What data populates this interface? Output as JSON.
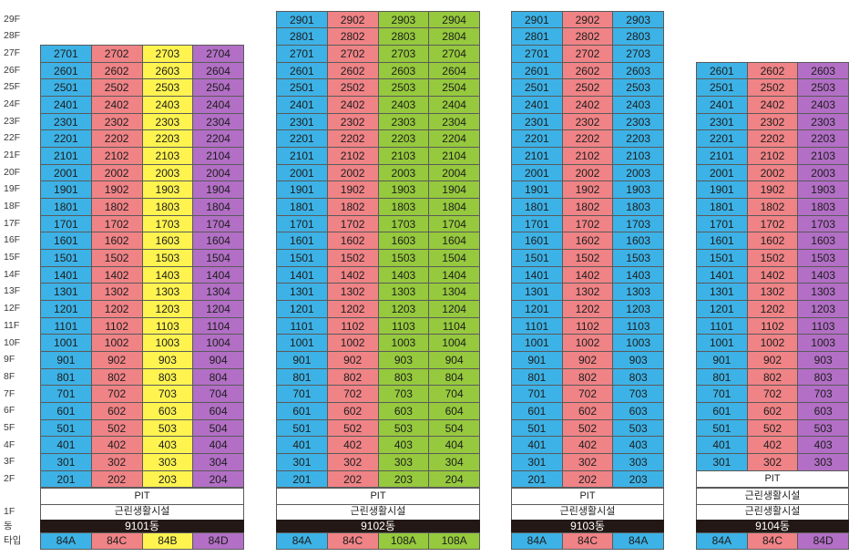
{
  "floor_axis": {
    "floors": [
      "29F",
      "28F",
      "27F",
      "26F",
      "25F",
      "24F",
      "23F",
      "22F",
      "21F",
      "20F",
      "19F",
      "18F",
      "17F",
      "16F",
      "15F",
      "14F",
      "13F",
      "12F",
      "11F",
      "10F",
      "9F",
      "8F",
      "7F",
      "6F",
      "5F",
      "4F",
      "3F",
      "2F"
    ],
    "ground_floor": "1F",
    "building_label": "동",
    "type_label": "타입"
  },
  "colors": {
    "blue": "#3db2e6",
    "pink": "#ef8386",
    "yellow": "#fff350",
    "purple": "#b26fc5",
    "green": "#96c93d",
    "building_bar": "#231815",
    "podium": "#ffffff"
  },
  "buildings": [
    {
      "name": "9101동",
      "lines": [
        {
          "type": "84A",
          "color": "blue"
        },
        {
          "type": "84C",
          "color": "pink"
        },
        {
          "type": "84B",
          "color": "yellow"
        },
        {
          "type": "84D",
          "color": "purple"
        }
      ],
      "units": [
        [
          "2701",
          "2702",
          "2703",
          "2704"
        ],
        [
          "2601",
          "2602",
          "2603",
          "2604"
        ],
        [
          "2501",
          "2502",
          "2503",
          "2504"
        ],
        [
          "2401",
          "2402",
          "2403",
          "2404"
        ],
        [
          "2301",
          "2302",
          "2303",
          "2304"
        ],
        [
          "2201",
          "2202",
          "2203",
          "2204"
        ],
        [
          "2101",
          "2102",
          "2103",
          "2104"
        ],
        [
          "2001",
          "2002",
          "2003",
          "2004"
        ],
        [
          "1901",
          "1902",
          "1903",
          "1904"
        ],
        [
          "1801",
          "1802",
          "1803",
          "1804"
        ],
        [
          "1701",
          "1702",
          "1703",
          "1704"
        ],
        [
          "1601",
          "1602",
          "1603",
          "1604"
        ],
        [
          "1501",
          "1502",
          "1503",
          "1504"
        ],
        [
          "1401",
          "1402",
          "1403",
          "1404"
        ],
        [
          "1301",
          "1302",
          "1303",
          "1304"
        ],
        [
          "1201",
          "1202",
          "1203",
          "1204"
        ],
        [
          "1101",
          "1102",
          "1103",
          "1104"
        ],
        [
          "1001",
          "1002",
          "1003",
          "1004"
        ],
        [
          "901",
          "902",
          "903",
          "904"
        ],
        [
          "801",
          "802",
          "803",
          "804"
        ],
        [
          "701",
          "702",
          "703",
          "704"
        ],
        [
          "601",
          "602",
          "603",
          "604"
        ],
        [
          "501",
          "502",
          "503",
          "504"
        ],
        [
          "401",
          "402",
          "403",
          "404"
        ],
        [
          "301",
          "302",
          "303",
          "304"
        ],
        [
          "201",
          "202",
          "203",
          "204"
        ]
      ],
      "podium": [
        "PIT",
        "근린생활시설"
      ]
    },
    {
      "name": "9102동",
      "lines": [
        {
          "type": "84A",
          "color": "blue"
        },
        {
          "type": "84C",
          "color": "pink"
        },
        {
          "type": "108A",
          "color": "green"
        },
        {
          "type": "108A",
          "color": "green"
        }
      ],
      "units": [
        [
          "2901",
          "2902",
          "2903",
          "2904"
        ],
        [
          "2801",
          "2802",
          "2803",
          "2804"
        ],
        [
          "2701",
          "2702",
          "2703",
          "2704"
        ],
        [
          "2601",
          "2602",
          "2603",
          "2604"
        ],
        [
          "2501",
          "2502",
          "2503",
          "2504"
        ],
        [
          "2401",
          "2402",
          "2403",
          "2404"
        ],
        [
          "2301",
          "2302",
          "2303",
          "2304"
        ],
        [
          "2201",
          "2202",
          "2203",
          "2204"
        ],
        [
          "2101",
          "2102",
          "2103",
          "2104"
        ],
        [
          "2001",
          "2002",
          "2003",
          "2004"
        ],
        [
          "1901",
          "1902",
          "1903",
          "1904"
        ],
        [
          "1801",
          "1802",
          "1803",
          "1804"
        ],
        [
          "1701",
          "1702",
          "1703",
          "1704"
        ],
        [
          "1601",
          "1602",
          "1603",
          "1604"
        ],
        [
          "1501",
          "1502",
          "1503",
          "1504"
        ],
        [
          "1401",
          "1402",
          "1403",
          "1404"
        ],
        [
          "1301",
          "1302",
          "1303",
          "1304"
        ],
        [
          "1201",
          "1202",
          "1203",
          "1204"
        ],
        [
          "1101",
          "1102",
          "1103",
          "1104"
        ],
        [
          "1001",
          "1002",
          "1003",
          "1004"
        ],
        [
          "901",
          "902",
          "903",
          "904"
        ],
        [
          "801",
          "802",
          "803",
          "804"
        ],
        [
          "701",
          "702",
          "703",
          "704"
        ],
        [
          "601",
          "602",
          "603",
          "604"
        ],
        [
          "501",
          "502",
          "503",
          "504"
        ],
        [
          "401",
          "402",
          "403",
          "404"
        ],
        [
          "301",
          "302",
          "303",
          "304"
        ],
        [
          "201",
          "202",
          "203",
          "204"
        ]
      ],
      "podium": [
        "PIT",
        "근린생활시설"
      ]
    },
    {
      "name": "9103동",
      "lines": [
        {
          "type": "84A",
          "color": "blue"
        },
        {
          "type": "84C",
          "color": "pink"
        },
        {
          "type": "84A",
          "color": "blue"
        }
      ],
      "units": [
        [
          "2901",
          "2902",
          "2903"
        ],
        [
          "2801",
          "2802",
          "2803"
        ],
        [
          "2701",
          "2702",
          "2703"
        ],
        [
          "2601",
          "2602",
          "2603"
        ],
        [
          "2501",
          "2502",
          "2503"
        ],
        [
          "2401",
          "2402",
          "2403"
        ],
        [
          "2301",
          "2302",
          "2303"
        ],
        [
          "2201",
          "2202",
          "2203"
        ],
        [
          "2101",
          "2102",
          "2103"
        ],
        [
          "2001",
          "2002",
          "2003"
        ],
        [
          "1901",
          "1902",
          "1903"
        ],
        [
          "1801",
          "1802",
          "1803"
        ],
        [
          "1701",
          "1702",
          "1703"
        ],
        [
          "1601",
          "1602",
          "1603"
        ],
        [
          "1501",
          "1502",
          "1503"
        ],
        [
          "1401",
          "1402",
          "1403"
        ],
        [
          "1301",
          "1302",
          "1303"
        ],
        [
          "1201",
          "1202",
          "1203"
        ],
        [
          "1101",
          "1102",
          "1103"
        ],
        [
          "1001",
          "1002",
          "1003"
        ],
        [
          "901",
          "902",
          "903"
        ],
        [
          "801",
          "802",
          "803"
        ],
        [
          "701",
          "702",
          "703"
        ],
        [
          "601",
          "602",
          "603"
        ],
        [
          "501",
          "502",
          "503"
        ],
        [
          "401",
          "402",
          "403"
        ],
        [
          "301",
          "302",
          "303"
        ],
        [
          "201",
          "202",
          "203"
        ]
      ],
      "podium": [
        "PIT",
        "근린생활시설"
      ]
    },
    {
      "name": "9104동",
      "lines": [
        {
          "type": "84A",
          "color": "blue"
        },
        {
          "type": "84C",
          "color": "pink"
        },
        {
          "type": "84D",
          "color": "purple"
        }
      ],
      "units": [
        [
          "2601",
          "2602",
          "2603"
        ],
        [
          "2501",
          "2502",
          "2503"
        ],
        [
          "2401",
          "2402",
          "2403"
        ],
        [
          "2301",
          "2302",
          "2303"
        ],
        [
          "2201",
          "2202",
          "2203"
        ],
        [
          "2101",
          "2102",
          "2103"
        ],
        [
          "2001",
          "2002",
          "2003"
        ],
        [
          "1901",
          "1902",
          "1903"
        ],
        [
          "1801",
          "1802",
          "1803"
        ],
        [
          "1701",
          "1702",
          "1703"
        ],
        [
          "1601",
          "1602",
          "1603"
        ],
        [
          "1501",
          "1502",
          "1503"
        ],
        [
          "1401",
          "1402",
          "1403"
        ],
        [
          "1301",
          "1302",
          "1303"
        ],
        [
          "1201",
          "1202",
          "1203"
        ],
        [
          "1101",
          "1102",
          "1103"
        ],
        [
          "1001",
          "1002",
          "1003"
        ],
        [
          "901",
          "902",
          "903"
        ],
        [
          "801",
          "802",
          "803"
        ],
        [
          "701",
          "702",
          "703"
        ],
        [
          "601",
          "602",
          "603"
        ],
        [
          "501",
          "502",
          "503"
        ],
        [
          "401",
          "402",
          "403"
        ],
        [
          "301",
          "302",
          "303"
        ]
      ],
      "podium": [
        "PIT",
        "근린생활시설",
        "근린생활시설"
      ]
    }
  ]
}
